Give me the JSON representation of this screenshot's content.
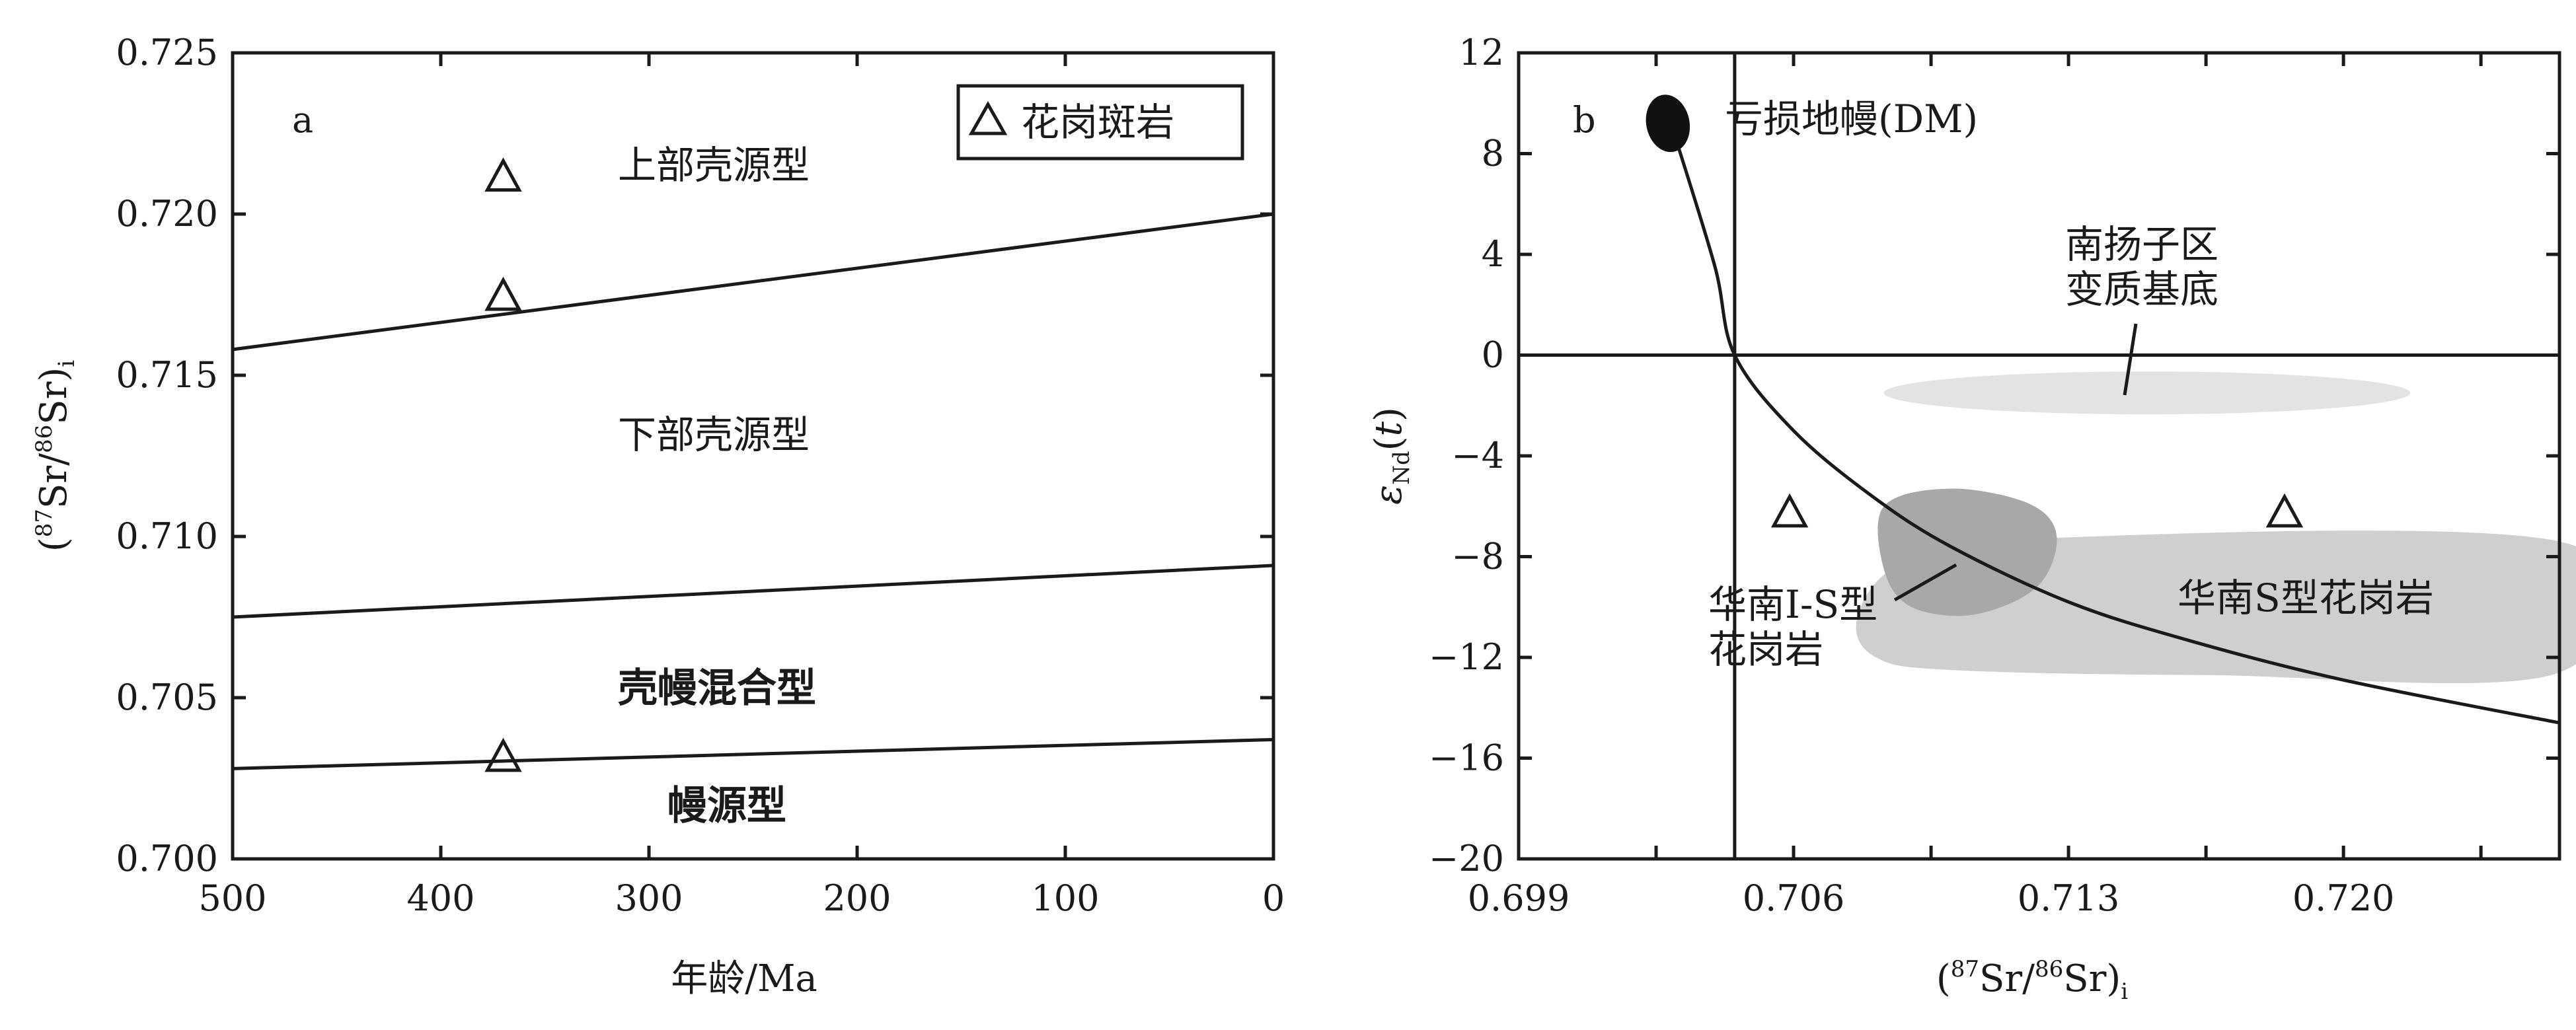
{
  "chart_data": [
    {
      "panel": "a",
      "type": "scatter",
      "xlabel": "年龄/Ma",
      "ylabel_parts": [
        "(",
        "87",
        "Sr/",
        "86",
        "Sr)",
        "i"
      ],
      "xlim": [
        500,
        0
      ],
      "ylim": [
        0.7,
        0.725
      ],
      "x_reversed": true,
      "x_ticks": [
        "500",
        "400",
        "300",
        "200",
        "100",
        "0"
      ],
      "x_tick_values": [
        500,
        400,
        300,
        200,
        100,
        0
      ],
      "y_ticks": [
        "0.700",
        "0.705",
        "0.710",
        "0.715",
        "0.720",
        "0.725"
      ],
      "y_tick_values": [
        0.7,
        0.705,
        0.71,
        0.715,
        0.72,
        0.725
      ],
      "grid": false,
      "legend": {
        "placement": "top-right",
        "entries": [
          {
            "name": "花岗斑岩",
            "marker": "triangle"
          }
        ]
      },
      "series": [
        {
          "name": "花岗斑岩",
          "marker": "triangle",
          "points": [
            [
              370,
              0.7212
            ],
            [
              370,
              0.7175
            ],
            [
              370,
              0.7032
            ]
          ]
        }
      ],
      "lines": [
        {
          "from": [
            500,
            0.7158
          ],
          "to": [
            0,
            0.72
          ]
        },
        {
          "from": [
            500,
            0.7075
          ],
          "to": [
            0,
            0.7091
          ]
        },
        {
          "from": [
            500,
            0.7028
          ],
          "to": [
            0,
            0.7037
          ]
        }
      ],
      "region_labels": [
        {
          "text": "上部壳源型",
          "bold": false
        },
        {
          "text": "下部壳源型",
          "bold": false
        },
        {
          "text": "壳幔混合型",
          "bold": true
        },
        {
          "text": "幔源型",
          "bold": true
        }
      ]
    },
    {
      "panel": "b",
      "type": "scatter",
      "xlabel_parts": [
        "(",
        "87",
        "Sr/",
        "86",
        "Sr)",
        "i"
      ],
      "ylabel_parts": [
        "ε",
        "Nd",
        "(",
        "t",
        ")"
      ],
      "xlim": [
        0.699,
        0.7255
      ],
      "ylim": [
        -20,
        12
      ],
      "x_ticks": [
        "0.699",
        "0.706",
        "0.713",
        "0.720"
      ],
      "x_tick_values": [
        0.699,
        0.706,
        0.713,
        0.72
      ],
      "x_minor_tick_values": [
        0.7025,
        0.7095,
        0.7165,
        0.7235
      ],
      "y_ticks": [
        "12",
        "8",
        "4",
        "0",
        "−4",
        "−8",
        "−12",
        "−16",
        "−20"
      ],
      "y_tick_values": [
        12,
        8,
        4,
        0,
        -4,
        -8,
        -12,
        -16,
        -20
      ],
      "grid": false,
      "reference_lines": {
        "x": 0.7045,
        "y": 0
      },
      "series": [
        {
          "name": "花岗斑岩",
          "marker": "triangle",
          "points": [
            [
              0.7059,
              -6.2
            ],
            [
              0.7185,
              -6.2
            ]
          ]
        }
      ],
      "mixing_curve": {
        "points": [
          [
            0.703,
            8.6
          ],
          [
            0.704,
            3.5
          ],
          [
            0.7045,
            0.0
          ],
          [
            0.706,
            -3.0
          ],
          [
            0.708,
            -5.6
          ],
          [
            0.71,
            -7.6
          ],
          [
            0.713,
            -9.8
          ],
          [
            0.716,
            -11.3
          ],
          [
            0.72,
            -12.9
          ],
          [
            0.7255,
            -14.6
          ]
        ]
      },
      "dm_ellipse": {
        "cx": 0.7028,
        "cy": 9.2,
        "rx": 0.00055,
        "ry": 1.15,
        "color": "#111111"
      },
      "fields": [
        {
          "name": "南扬子区变质基底",
          "color": "#e3e3e3",
          "cx": 0.715,
          "cy": -1.5,
          "rx": 0.0067,
          "ry": 0.85
        },
        {
          "name": "华南S型花岗岩",
          "color": "#cfcfcf",
          "points": [
            [
              0.7105,
              -7.4
            ],
            [
              0.7255,
              -7.4
            ],
            [
              0.7255,
              -12.6
            ],
            [
              0.7165,
              -12.7
            ],
            [
              0.71,
              -12.5
            ],
            [
              0.7081,
              -12.0
            ],
            [
              0.7076,
              -10.6
            ],
            [
              0.7084,
              -8.6
            ]
          ]
        },
        {
          "name": "华南I-S型花岗岩",
          "color": "#a8a8a8",
          "points": [
            [
              0.71,
              -5.3
            ],
            [
              0.712,
              -5.9
            ],
            [
              0.7127,
              -7.2
            ],
            [
              0.7122,
              -9.2
            ],
            [
              0.7106,
              -10.3
            ],
            [
              0.709,
              -10.0
            ],
            [
              0.7083,
              -8.5
            ],
            [
              0.7083,
              -6.0
            ]
          ]
        }
      ],
      "labels": [
        {
          "text": "亏损地幔(DM)"
        },
        {
          "lines": [
            "南扬子区",
            "变质基底"
          ]
        },
        {
          "lines": [
            "华南I-S型",
            "花岗岩"
          ]
        },
        {
          "text": "华南S型花岗岩"
        }
      ]
    }
  ]
}
